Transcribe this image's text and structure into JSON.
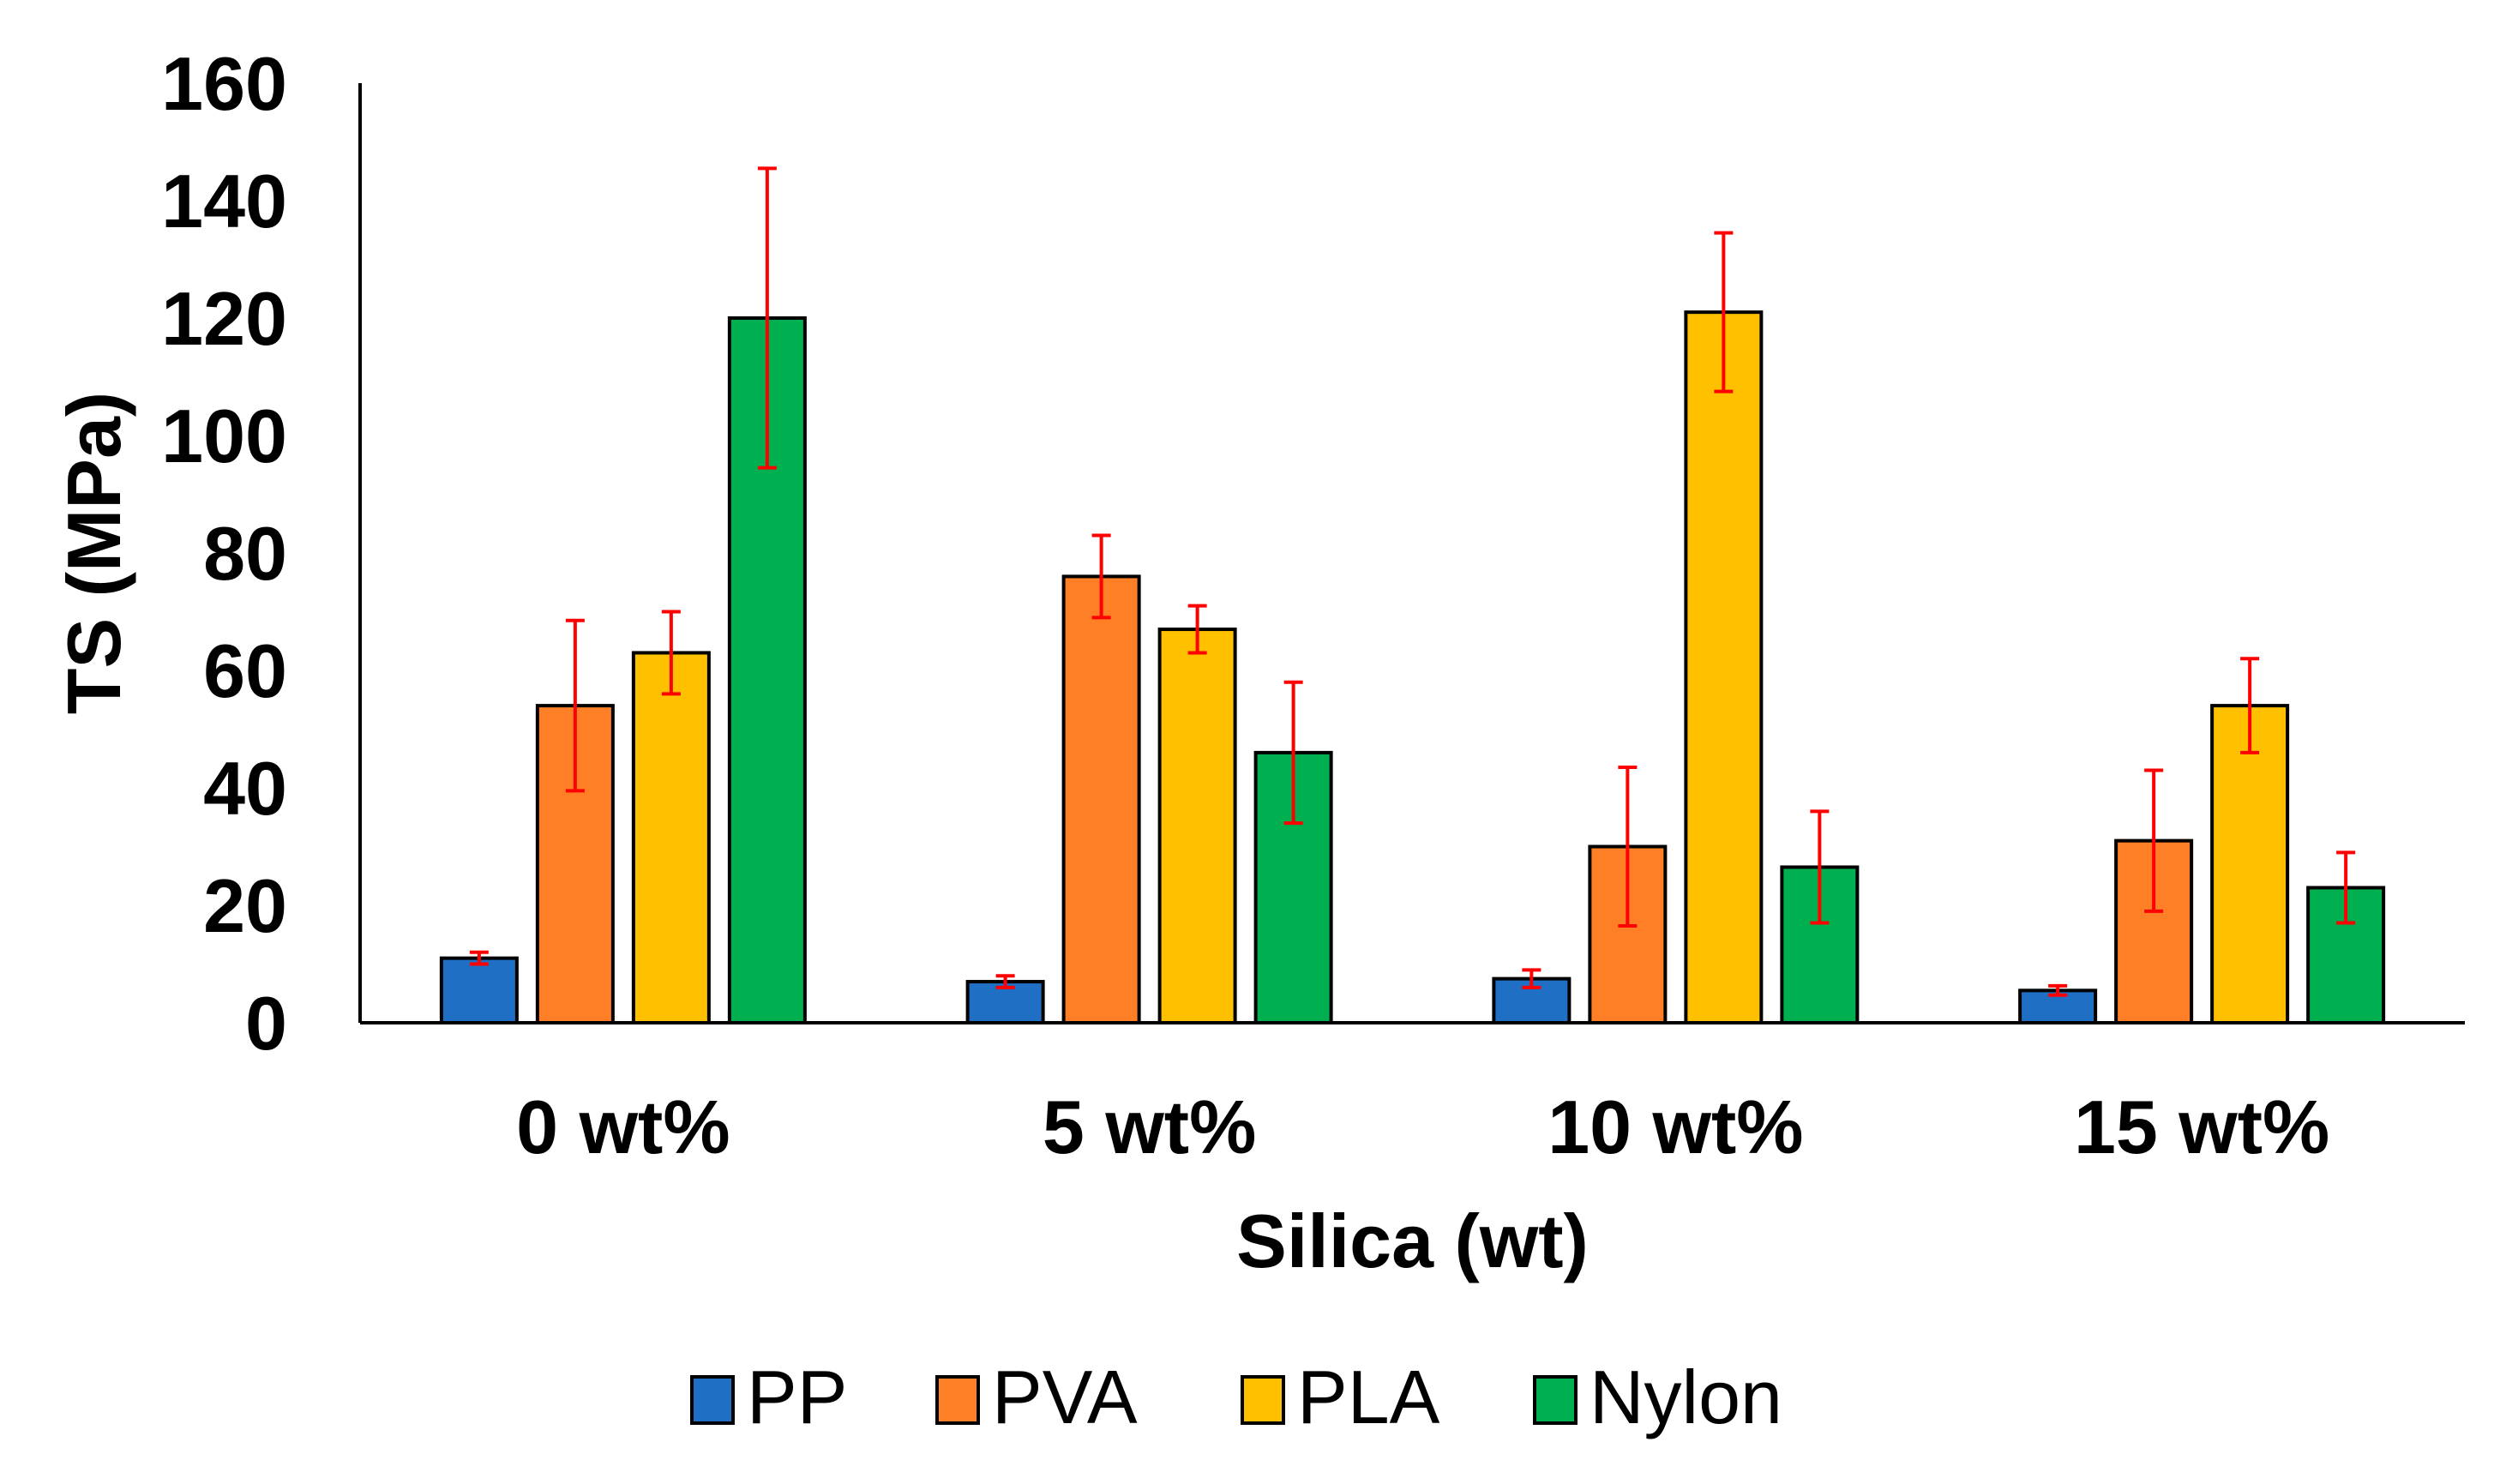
{
  "chart_data": {
    "type": "bar",
    "xlabel": "Silica (wt)",
    "ylabel": "TS (MPa)",
    "ylim": [
      0,
      160
    ],
    "yticks": [
      0,
      20,
      40,
      60,
      80,
      100,
      120,
      140,
      160
    ],
    "categories": [
      "0 wt%",
      "5 wt%",
      "10 wt%",
      "15 wt%"
    ],
    "grid": false,
    "legend_position": "bottom",
    "series": [
      {
        "name": "PP",
        "color": "#1F6FC5",
        "values": [
          11,
          7,
          7.5,
          5.5
        ],
        "errors": [
          1,
          1,
          1.5,
          0.8
        ]
      },
      {
        "name": "PVA",
        "color": "#FF7F27",
        "values": [
          54,
          76,
          30,
          31
        ],
        "errors": [
          14.5,
          7,
          13.5,
          12
        ]
      },
      {
        "name": "PLA",
        "color": "#FFC000",
        "values": [
          63,
          67,
          121,
          54
        ],
        "errors": [
          7,
          4,
          13.5,
          8
        ]
      },
      {
        "name": "Nylon",
        "color": "#00B050",
        "values": [
          120,
          46,
          26.5,
          23
        ],
        "errors": [
          25.5,
          12,
          9.5,
          6
        ]
      }
    ],
    "error_bar_color": "#FF0000"
  }
}
